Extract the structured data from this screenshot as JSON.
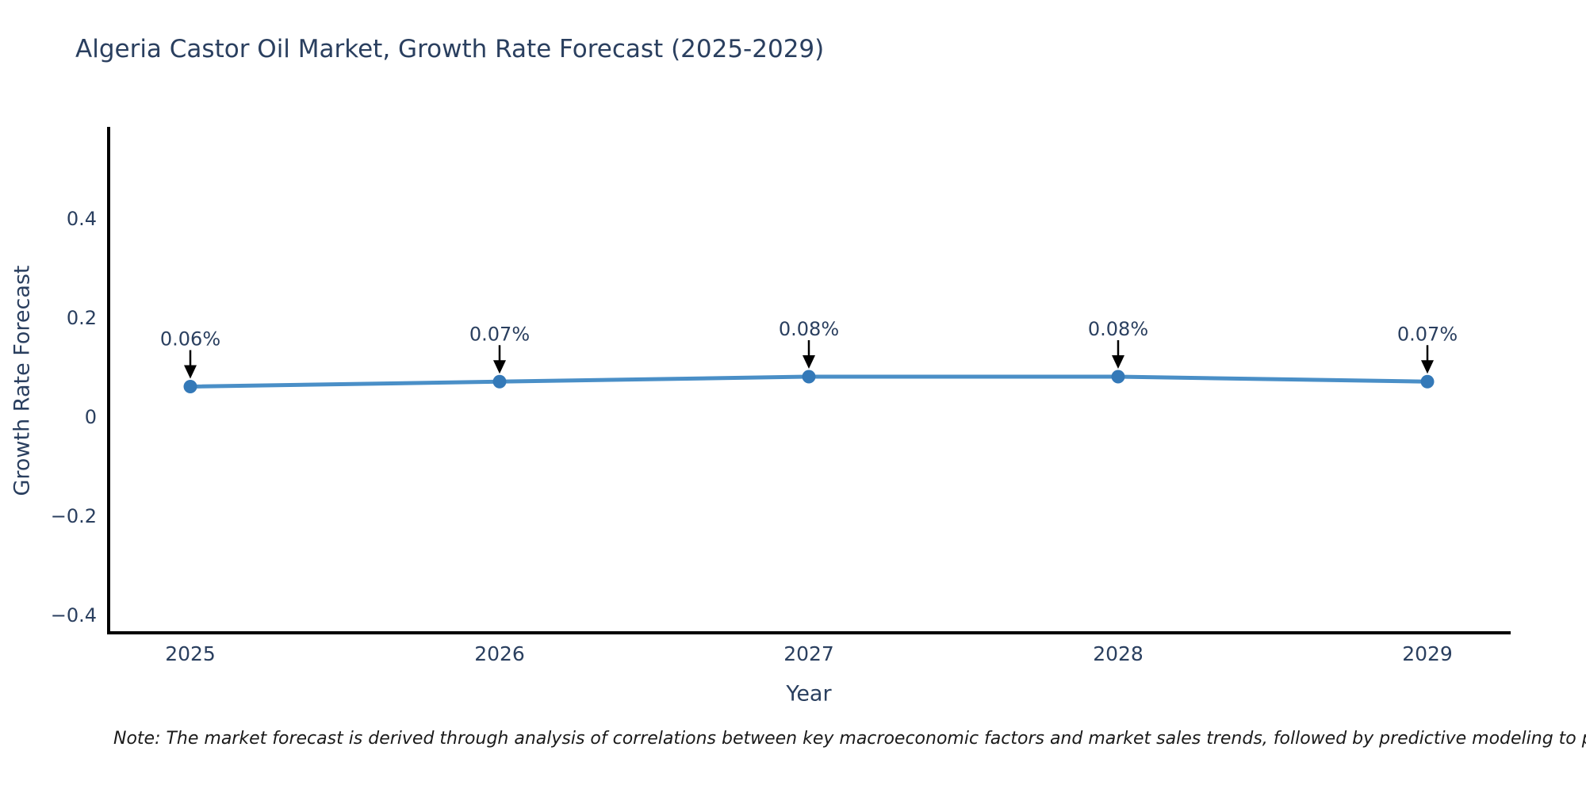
{
  "page": {
    "background": "#ffffff"
  },
  "header": {
    "title": "Algeria Castor Oil Market, Growth Rate Forecast (2025-2029)"
  },
  "note": {
    "text": "Note: The market forecast is derived through analysis of correlations between key macroeconomic factors and market sales trends, followed by predictive modeling to project future sales."
  },
  "chart_data": {
    "type": "line",
    "title": "Algeria Castor Oil Market, Growth Rate Forecast (2025-2029)",
    "xlabel": "Year",
    "ylabel": "Growth Rate Forecast",
    "x": [
      "2025",
      "2026",
      "2027",
      "2028",
      "2029"
    ],
    "series": [
      {
        "name": "Growth Rate Forecast",
        "values": [
          0.06,
          0.07,
          0.08,
          0.08,
          0.07
        ]
      }
    ],
    "point_labels": [
      "0.06%",
      "0.07%",
      "0.08%",
      "0.08%",
      "0.07%"
    ],
    "y_tick_labels": [
      "0.4",
      "0.2",
      "0",
      "−0.2",
      "−0.4"
    ],
    "y_tick_values": [
      0.4,
      0.2,
      0,
      -0.2,
      -0.4
    ],
    "ylim": [
      -0.44,
      0.58
    ],
    "grid": false,
    "legend_position": "none",
    "annotations_style": "value labels above each point with black downward arrows pointing at markers",
    "colors": {
      "line": "#4a8fc7",
      "marker": "#3479b8",
      "text": "#2a3f5f",
      "axis": "#000000",
      "arrow": "#000000"
    }
  }
}
